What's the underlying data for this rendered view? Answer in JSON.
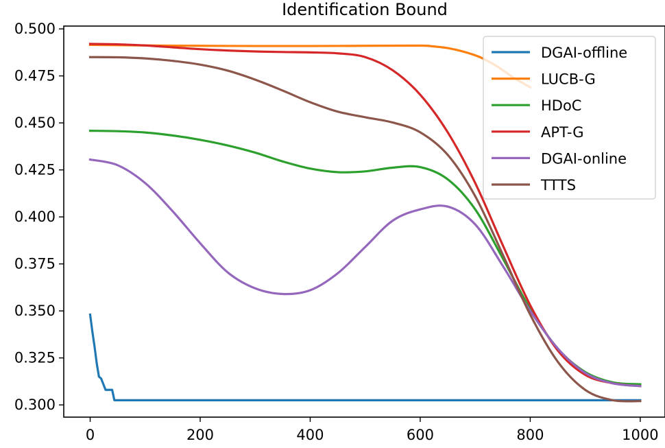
{
  "chart_data": {
    "type": "line",
    "title": "Identification Bound",
    "xlabel": "",
    "ylabel": "",
    "xlim": [
      -48,
      1045
    ],
    "ylim": [
      0.2935,
      0.5015
    ],
    "xticks": [
      0,
      200,
      400,
      600,
      800,
      1000
    ],
    "xtick_labels": [
      "0",
      "200",
      "400",
      "600",
      "800",
      "1000"
    ],
    "yticks": [
      0.3,
      0.325,
      0.35,
      0.375,
      0.4,
      0.425,
      0.45,
      0.475,
      0.5
    ],
    "ytick_labels": [
      "0.300",
      "0.325",
      "0.350",
      "0.375",
      "0.400",
      "0.425",
      "0.450",
      "0.475",
      "0.500"
    ],
    "grid": false,
    "legend_position": "top-right",
    "series": [
      {
        "name": "DGAI-offline",
        "color": "#1f77b4",
        "x": [
          0,
          4,
          8,
          12,
          16,
          20,
          24,
          28,
          32,
          36,
          40,
          44,
          48,
          100,
          200,
          400,
          600,
          800,
          1000
        ],
        "y": [
          0.348,
          0.339,
          0.331,
          0.322,
          0.315,
          0.314,
          0.311,
          0.308,
          0.308,
          0.308,
          0.308,
          0.3025,
          0.3025,
          0.3025,
          0.3025,
          0.3025,
          0.3025,
          0.3025,
          0.3025
        ]
      },
      {
        "name": "LUCB-G",
        "color": "#ff7f0e",
        "x": [
          0,
          100,
          200,
          300,
          400,
          500,
          600,
          620,
          650,
          680,
          710,
          740,
          770,
          800
        ],
        "y": [
          0.4915,
          0.4912,
          0.491,
          0.4909,
          0.4909,
          0.491,
          0.4911,
          0.4908,
          0.4898,
          0.4878,
          0.4848,
          0.48,
          0.474,
          0.469
        ]
      },
      {
        "name": "HDoC",
        "color": "#2ca02c",
        "x": [
          0,
          50,
          100,
          150,
          200,
          250,
          300,
          350,
          400,
          450,
          500,
          550,
          600,
          650,
          700,
          750,
          800,
          850,
          900,
          950,
          1000
        ],
        "y": [
          0.4458,
          0.4456,
          0.4449,
          0.4433,
          0.441,
          0.438,
          0.4342,
          0.4295,
          0.4257,
          0.4238,
          0.4242,
          0.4262,
          0.4265,
          0.42,
          0.404,
          0.378,
          0.351,
          0.33,
          0.3175,
          0.312,
          0.311
        ]
      },
      {
        "name": "APT-G",
        "color": "#d62728",
        "x": [
          0,
          50,
          100,
          150,
          200,
          250,
          300,
          350,
          400,
          450,
          500,
          550,
          600,
          650,
          700,
          750,
          800,
          850,
          900,
          950,
          1000
        ],
        "y": [
          0.492,
          0.4918,
          0.4912,
          0.4902,
          0.4892,
          0.4885,
          0.488,
          0.4877,
          0.4875,
          0.487,
          0.485,
          0.478,
          0.465,
          0.445,
          0.418,
          0.385,
          0.353,
          0.329,
          0.316,
          0.3115,
          0.31
        ]
      },
      {
        "name": "DGAI-online",
        "color": "#9467bd",
        "x": [
          0,
          50,
          100,
          150,
          200,
          250,
          300,
          350,
          400,
          450,
          500,
          550,
          600,
          650,
          700,
          750,
          800,
          850,
          900,
          950,
          1000
        ],
        "y": [
          0.4305,
          0.4275,
          0.418,
          0.403,
          0.386,
          0.3705,
          0.362,
          0.359,
          0.361,
          0.37,
          0.384,
          0.398,
          0.404,
          0.4055,
          0.396,
          0.374,
          0.35,
          0.33,
          0.317,
          0.3115,
          0.31
        ]
      },
      {
        "name": "TTTS",
        "color": "#8c564b",
        "x": [
          0,
          50,
          100,
          150,
          200,
          250,
          300,
          350,
          400,
          450,
          500,
          550,
          600,
          650,
          700,
          750,
          800,
          850,
          900,
          950,
          1000
        ],
        "y": [
          0.485,
          0.4849,
          0.4843,
          0.483,
          0.481,
          0.4778,
          0.473,
          0.4672,
          0.461,
          0.456,
          0.453,
          0.4502,
          0.445,
          0.433,
          0.411,
          0.38,
          0.348,
          0.323,
          0.308,
          0.3025,
          0.302
        ]
      }
    ]
  }
}
